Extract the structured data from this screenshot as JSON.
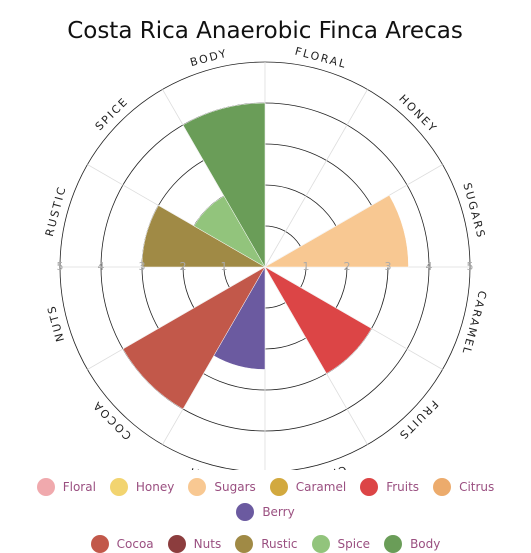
{
  "chart_data": {
    "type": "polar_bar",
    "title": "Costa Rica Anaerobic Finca Arecas",
    "categories": [
      "Floral",
      "Honey",
      "Sugars",
      "Caramel",
      "Fruits",
      "Citrus",
      "Berry",
      "Cocoa",
      "Nuts",
      "Rustic",
      "Spice",
      "Body"
    ],
    "values": [
      0,
      0,
      3.5,
      0,
      3,
      0,
      2.5,
      4,
      0,
      3,
      2,
      4
    ],
    "colors": [
      "#f0a9ad",
      "#f2d470",
      "#f8c892",
      "#d2a93f",
      "#dc4546",
      "#ecab6c",
      "#6b5aa0",
      "#c2584a",
      "#8c3d3e",
      "#a08a45",
      "#92c47c",
      "#6a9d58"
    ],
    "ylim": [
      0,
      5
    ],
    "yticks": [
      1,
      2,
      3,
      4,
      5
    ],
    "grid": true
  }
}
